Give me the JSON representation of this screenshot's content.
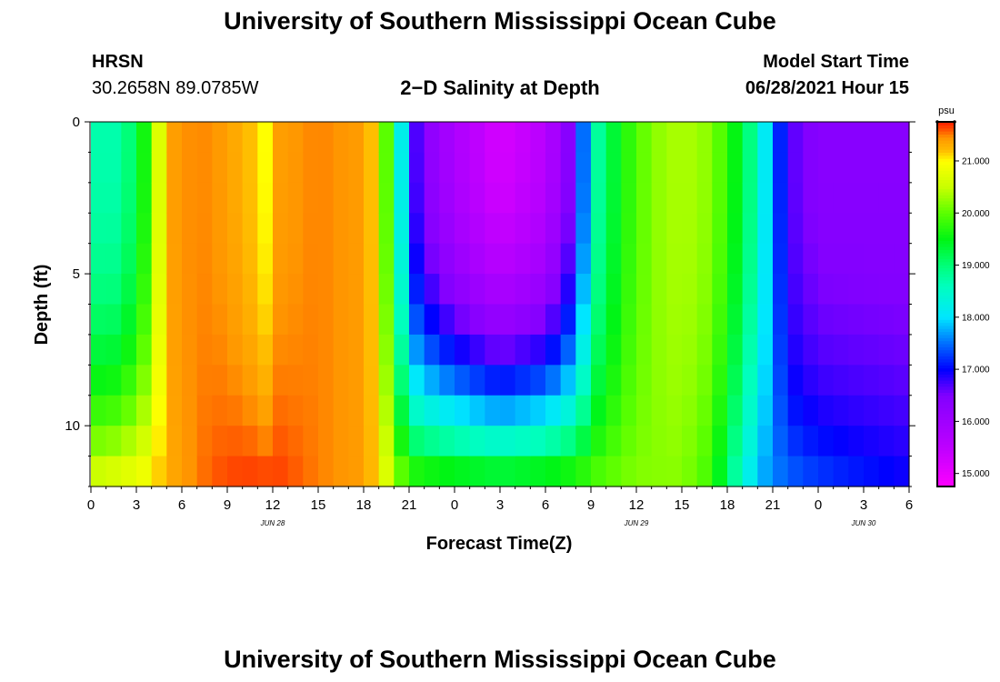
{
  "page": {
    "title_top": "University of Southern Mississippi Ocean Cube",
    "title_bottom": "University of Southern Mississippi Ocean Cube",
    "station": "HRSN",
    "coords": "30.2658N  89.0785W",
    "plot_title": "2−D Salinity at Depth",
    "model_start_label": "Model Start Time",
    "model_start_value": "06/28/2021 Hour 15"
  },
  "chart_data": {
    "type": "heatmap",
    "title": "2−D Salinity at Depth",
    "xlabel": "Forecast Time(Z)",
    "ylabel": "Depth (ft)",
    "x_tick_labels": [
      "0",
      "3",
      "6",
      "9",
      "12",
      "15",
      "18",
      "21",
      "0",
      "3",
      "6",
      "9",
      "12",
      "15",
      "18",
      "21",
      "0",
      "3",
      "6"
    ],
    "x_day_labels": [
      {
        "label": "JUN 28",
        "hour": 12
      },
      {
        "label": "JUN 29",
        "hour": 36
      },
      {
        "label": "JUN 30",
        "hour": 51
      }
    ],
    "x_range_hours": [
      0,
      54
    ],
    "y_range_ft": [
      0,
      12
    ],
    "y_tick_labels": [
      "0",
      "5",
      "10"
    ],
    "y_tick_values": [
      0,
      5,
      10
    ],
    "colorbar": {
      "unit": "psu",
      "range": [
        14.75,
        21.75
      ],
      "tick_labels": [
        "15.000",
        "16.000",
        "17.000",
        "18.000",
        "19.000",
        "20.000",
        "21.000"
      ],
      "tick_values": [
        15,
        16,
        17,
        18,
        19,
        20,
        21
      ]
    },
    "surface_profile": {
      "hours": [
        0,
        2,
        3.5,
        4.5,
        5.5,
        7,
        9,
        10.5,
        11.5,
        12.5,
        15,
        18,
        19,
        20,
        20.5,
        21,
        22,
        24,
        27,
        30,
        31.5,
        32.5,
        33.5,
        35,
        37,
        39,
        41,
        43,
        44,
        45,
        46,
        48,
        54
      ],
      "salinity": [
        18.7,
        18.7,
        19.6,
        20.7,
        21.4,
        21.5,
        21.4,
        21.2,
        21.0,
        21.4,
        21.5,
        21.4,
        21.0,
        19.0,
        18.2,
        17.0,
        16.4,
        15.8,
        15.2,
        15.6,
        16.4,
        17.5,
        18.8,
        19.6,
        20.2,
        20.4,
        20.2,
        19.3,
        18.6,
        17.6,
        16.7,
        16.4,
        16.4
      ]
    },
    "bottom_profile": {
      "hours": [
        0,
        2,
        3.5,
        5,
        7,
        8,
        10,
        12,
        15,
        18,
        19,
        20,
        21,
        24,
        27,
        30,
        33,
        36,
        39,
        41,
        42,
        43,
        44,
        45,
        47,
        50,
        54
      ],
      "salinity": [
        20.7,
        20.9,
        21.0,
        21.3,
        21.5,
        21.6,
        21.7,
        21.7,
        21.5,
        21.4,
        21.1,
        20.4,
        20.0,
        19.9,
        19.8,
        19.9,
        20.0,
        20.2,
        20.2,
        19.8,
        19.0,
        18.4,
        17.8,
        17.6,
        17.4,
        17.2,
        17.0
      ]
    }
  }
}
